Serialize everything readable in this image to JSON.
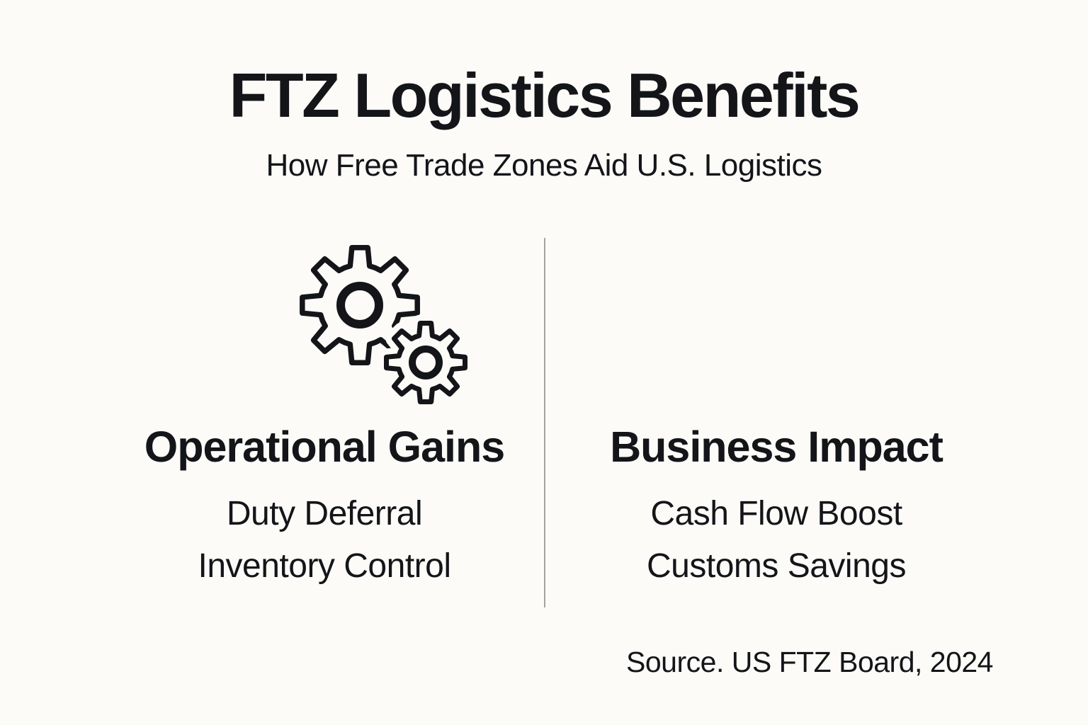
{
  "page": {
    "title": "FTZ Logistics Benefits",
    "subtitle": "How Free Trade Zones Aid U.S. Logistics"
  },
  "columns": [
    {
      "icon": "gears-icon",
      "heading": "Operational Gains",
      "items": [
        "Duty Deferral",
        "Inventory Control"
      ]
    },
    {
      "icon": "growth-chart-dollar-icon",
      "heading": "Business Impact",
      "items": [
        "Cash Flow Boost",
        "Customs Savings"
      ]
    }
  ],
  "icons": {
    "dollar_symbol": "$"
  },
  "footer": {
    "source": "Source. US FTZ Board, 2024"
  },
  "colors": {
    "background": "#FCFBF8",
    "ink": "#141519",
    "divider": "#A3A3A3"
  }
}
